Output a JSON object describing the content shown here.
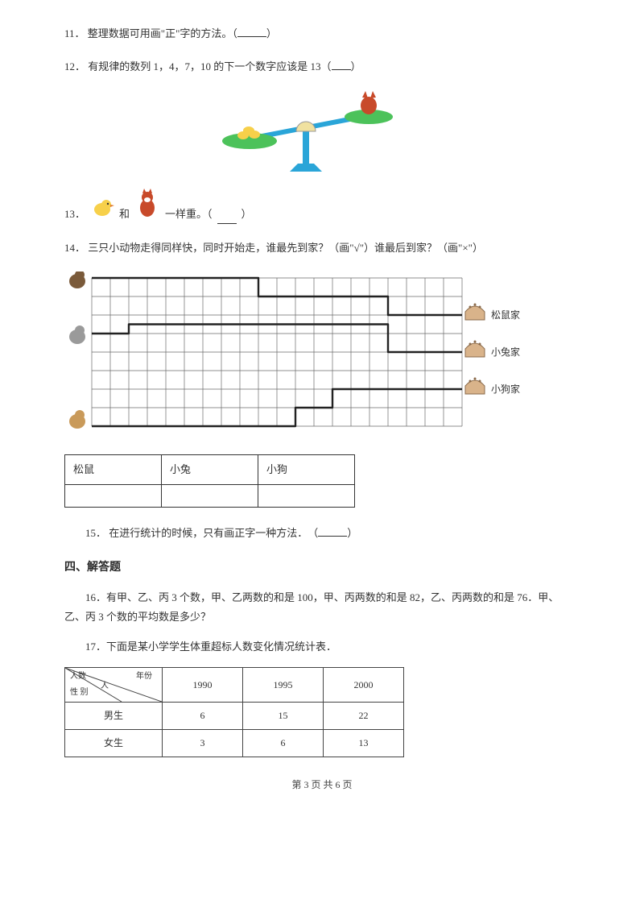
{
  "q11": {
    "num": "11．",
    "text": "整理数据可用画\"正\"字的方法。（",
    "tail": "）"
  },
  "q12": {
    "num": "12．",
    "text": "有规律的数列 1，4，7，10 的下一个数字应该是 13（",
    "tail": "）"
  },
  "q13": {
    "num": "13．",
    "mid": "和",
    "tail_a": "一样重。（",
    "tail_b": "）"
  },
  "q14": {
    "num": "14．",
    "text": "三只小动物走得同样快，同时开始走，谁最先到家？（画\"√\"）谁最后到家？（画\"×\"）"
  },
  "grid": {
    "cols": 20,
    "rows": 8,
    "cell": 23,
    "line_color": "#6a6a6a",
    "path_color": "#222222",
    "path_width": 2.4,
    "paths": {
      "squirrel": [
        [
          0,
          0
        ],
        [
          9,
          0
        ],
        [
          9,
          1
        ],
        [
          16,
          1
        ],
        [
          16,
          2
        ],
        [
          20,
          2
        ]
      ],
      "rabbit": [
        [
          0,
          3
        ],
        [
          2,
          3
        ],
        [
          2,
          2.5
        ],
        [
          16,
          2.5
        ],
        [
          16,
          4
        ],
        [
          20,
          4
        ]
      ],
      "dog": [
        [
          0,
          8
        ],
        [
          11,
          8
        ],
        [
          11,
          7
        ],
        [
          13,
          7
        ],
        [
          13,
          6
        ],
        [
          16,
          6
        ],
        [
          16,
          6
        ],
        [
          20,
          6
        ]
      ]
    },
    "labels": {
      "squirrel_home": "松鼠家",
      "rabbit_home": "小兔家",
      "dog_home": "小狗家"
    },
    "animal_colors": {
      "squirrel": "#7a5a3a",
      "rabbit": "#9a9a9a",
      "dog": "#c99a5a"
    },
    "house_color": "#d9b38a"
  },
  "answer_table": {
    "headers": [
      "松鼠",
      "小兔",
      "小狗"
    ]
  },
  "q15": {
    "num": "15．",
    "text": "在进行统计的时候，只有画正字一种方法．　（",
    "tail": "）"
  },
  "section4": "四、解答题",
  "q16": {
    "num": "16．",
    "text": "有甲、乙、丙 3 个数，甲、乙两数的和是 100，甲、丙两数的和是 82，乙、丙两数的和是 76．甲、乙、丙 3 个数的平均数是多少？"
  },
  "q17": {
    "num": "17．",
    "text": "下面是某小学学生体重超标人数变化情况统计表．"
  },
  "stat_table": {
    "diag": {
      "top_right": "年份",
      "middle": "人",
      "bottom_left": "性 别",
      "top_left": "人数"
    },
    "years": [
      "1990",
      "1995",
      "2000"
    ],
    "rows": [
      {
        "label": "男生",
        "vals": [
          "6",
          "15",
          "22"
        ]
      },
      {
        "label": "女生",
        "vals": [
          "3",
          "6",
          "13"
        ]
      }
    ],
    "border_color": "#444444",
    "bg": "#ffffff"
  },
  "footer": "第 3 页 共 6 页"
}
